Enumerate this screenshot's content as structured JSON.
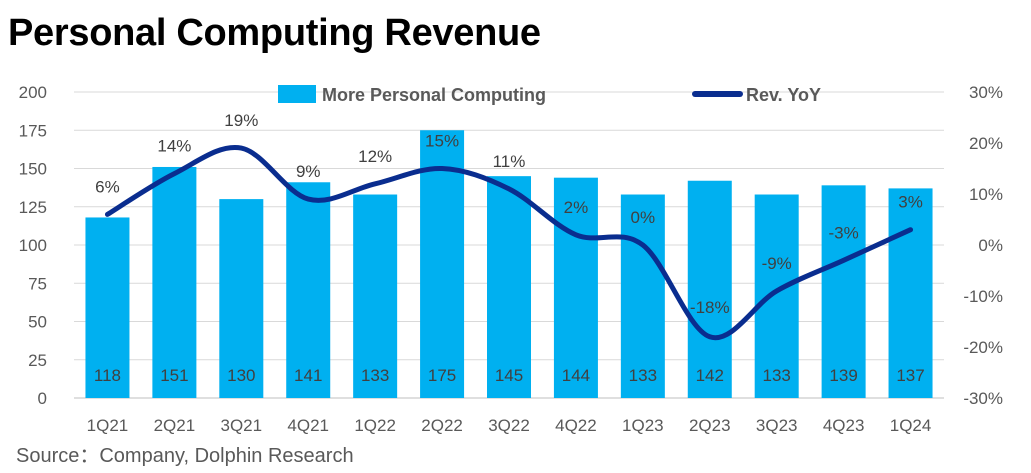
{
  "title": "Personal Computing Revenue",
  "source": "Source：Company, Dolphin Research",
  "chart_data": {
    "type": "bar",
    "categories": [
      "1Q21",
      "2Q21",
      "3Q21",
      "4Q21",
      "1Q22",
      "2Q22",
      "3Q22",
      "4Q22",
      "1Q23",
      "2Q23",
      "3Q23",
      "4Q23",
      "1Q24"
    ],
    "series": [
      {
        "name": "More Personal Computing",
        "kind": "bar",
        "axis": "left",
        "values": [
          118,
          151,
          130,
          141,
          133,
          175,
          145,
          144,
          133,
          142,
          133,
          139,
          137
        ],
        "color": "#00B0F0"
      },
      {
        "name": "Rev. YoY",
        "kind": "line",
        "axis": "right",
        "values": [
          6,
          14,
          19,
          9,
          12,
          15,
          11,
          2,
          0,
          -18,
          -9,
          -3,
          3
        ],
        "labels": [
          "6%",
          "14%",
          "19%",
          "9%",
          "12%",
          "15%",
          "11%",
          "2%",
          "0%",
          "-18%",
          "-9%",
          "-3%",
          "3%"
        ],
        "color": "#0A2D8F"
      }
    ],
    "left_axis": {
      "ylim": [
        0,
        200
      ],
      "ticks": [
        "0",
        "25",
        "50",
        "75",
        "100",
        "125",
        "150",
        "175",
        "200"
      ],
      "tick_values": [
        0,
        25,
        50,
        75,
        100,
        125,
        150,
        175,
        200
      ]
    },
    "right_axis": {
      "ylim": [
        -30,
        30
      ],
      "ticks": [
        "-30%",
        "-20%",
        "-10%",
        "0%",
        "10%",
        "20%",
        "30%"
      ],
      "tick_values": [
        -30,
        -20,
        -10,
        0,
        10,
        20,
        30
      ]
    },
    "grid": true,
    "legend_position": "top"
  }
}
